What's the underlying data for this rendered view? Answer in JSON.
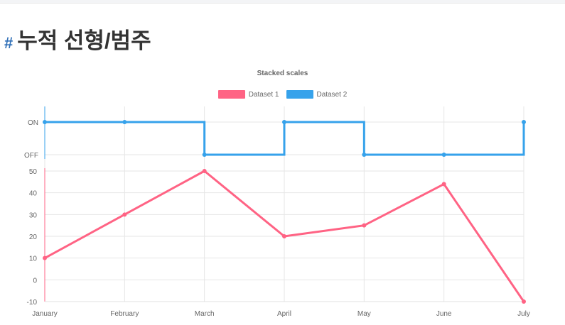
{
  "page": {
    "heading_hash": "#",
    "heading": "누적 선형/범주"
  },
  "chart_data": {
    "type": "line",
    "title": "Stacked scales",
    "legend_position": "top",
    "grid": true,
    "categories": [
      "January",
      "February",
      "March",
      "April",
      "May",
      "June",
      "July"
    ],
    "series": [
      {
        "name": "Dataset 1",
        "color": "#ff6384",
        "values": [
          10,
          30,
          50,
          20,
          25,
          44,
          -10
        ],
        "axis": "linear",
        "ylim": [
          -10,
          50
        ],
        "yticks": [
          -10,
          0,
          10,
          20,
          30,
          40,
          50
        ]
      },
      {
        "name": "Dataset 2",
        "color": "#36a2eb",
        "values": [
          "ON",
          "ON",
          "OFF",
          "ON",
          "OFF",
          "OFF",
          "ON"
        ],
        "axis": "category",
        "stepped": true,
        "ylabels": [
          "ON",
          "OFF"
        ]
      }
    ]
  }
}
